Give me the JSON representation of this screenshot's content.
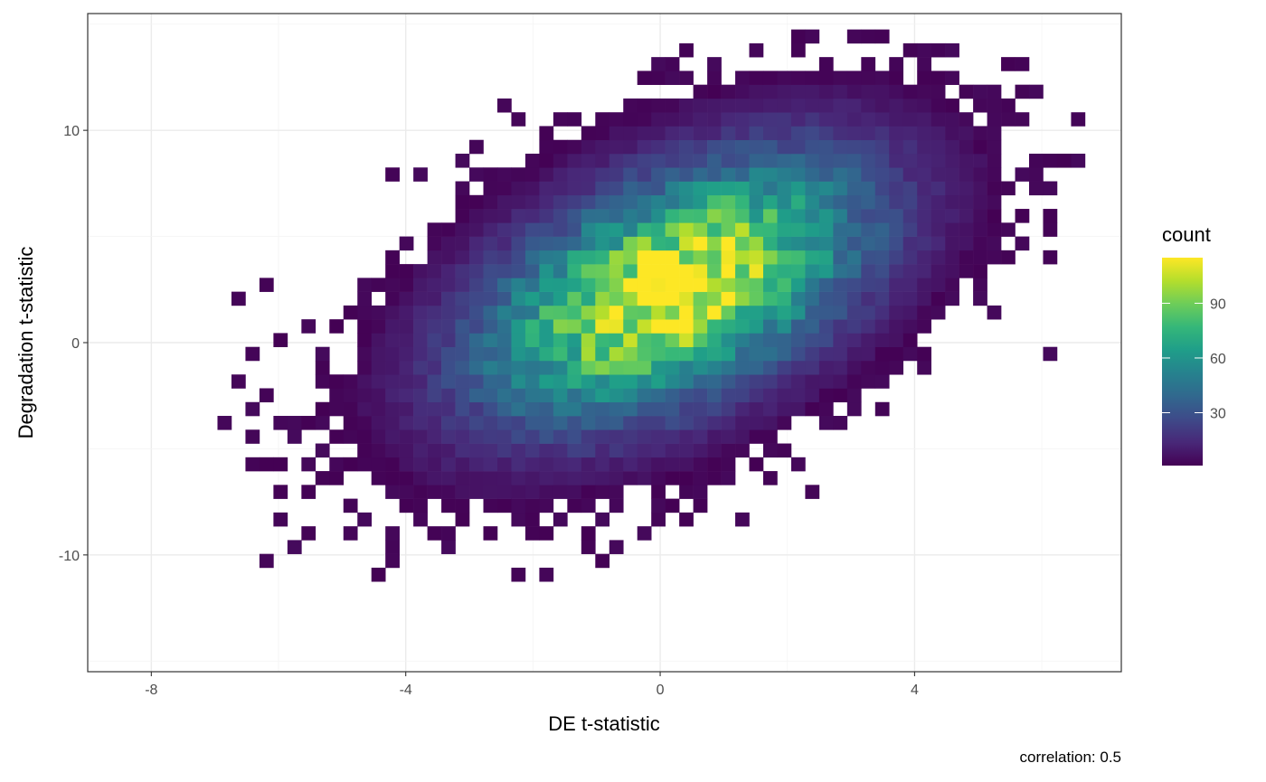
{
  "chart_data": {
    "type": "heatmap",
    "subtype": "2d-binned-count",
    "xlabel": "DE t-statistic",
    "ylabel": "Degradation t-statistic",
    "xlim": [
      -9.0,
      7.25
    ],
    "ylim": [
      -15.5,
      15.5
    ],
    "x_ticks": [
      -8,
      -4,
      0,
      4
    ],
    "x_tick_labels": [
      "-8",
      "-4",
      "0",
      "4"
    ],
    "y_ticks": [
      -10,
      0,
      10
    ],
    "y_tick_labels": [
      "-10",
      "0",
      "10"
    ],
    "grid": true,
    "bin_width": {
      "x": 0.22,
      "y": 0.65
    },
    "distribution": {
      "center": {
        "x": 0.2,
        "y": 2.5
      },
      "sd": {
        "x": 2.0,
        "y": 4.0
      },
      "correlation": 0.5,
      "max_count": 115
    },
    "legend": {
      "title": "count",
      "placement": "right",
      "breaks": [
        30,
        60,
        90
      ],
      "break_labels": [
        "30",
        "60",
        "90"
      ],
      "range": [
        1,
        115
      ]
    },
    "colorscale": [
      "#440154",
      "#482878",
      "#3E4A89",
      "#31688E",
      "#26828E",
      "#1F9E89",
      "#35B779",
      "#6DCD59",
      "#B4DE2C",
      "#FDE725"
    ],
    "caption": "correlation: 0.5"
  }
}
